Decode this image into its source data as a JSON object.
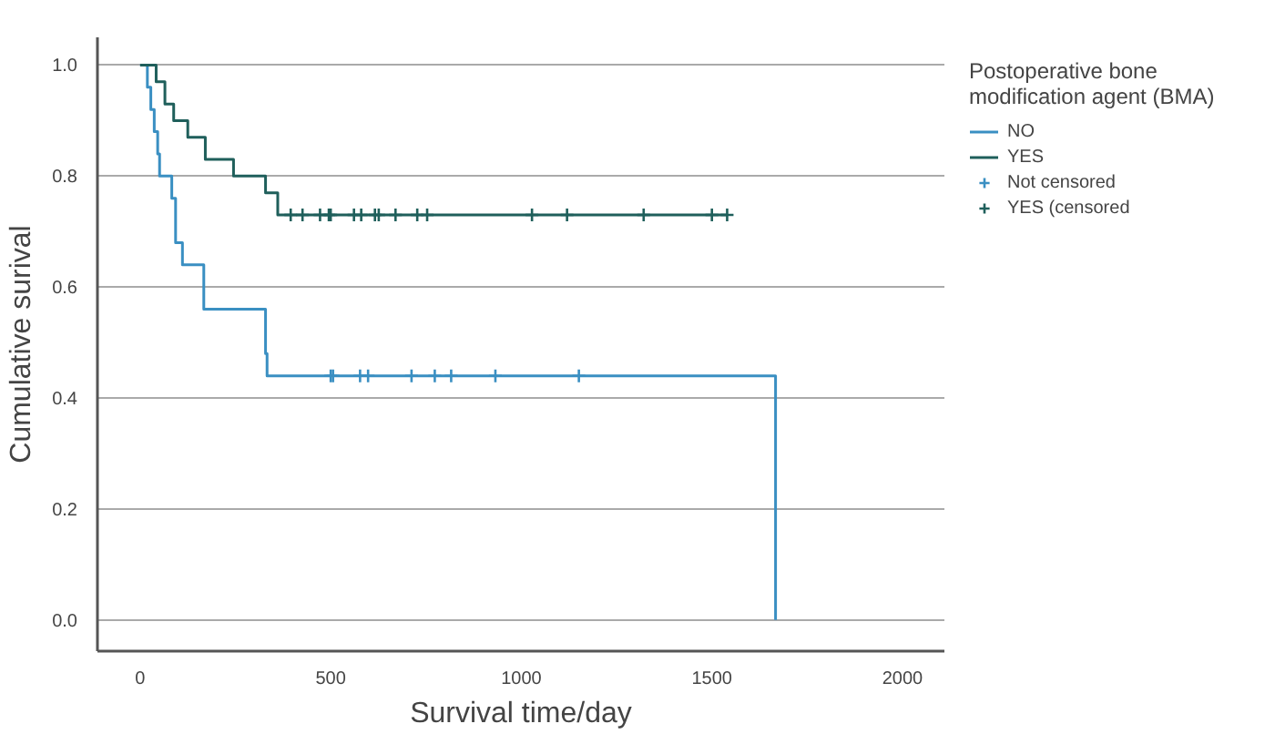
{
  "chart_data": {
    "type": "step",
    "xlabel": "Survival time/day",
    "ylabel": "Cumulative surival",
    "legend_title": "Postoperative bone\nmodification agent (BMA)",
    "xlim": [
      -112,
      2110
    ],
    "ylim": [
      -0.056,
      1.05
    ],
    "xticks": [
      0,
      500,
      1000,
      1500,
      2000
    ],
    "yticks": [
      {
        "value": 0,
        "label": "0.0"
      },
      {
        "value": 0.2,
        "label": "0.2"
      },
      {
        "value": 0.4,
        "label": "0.4"
      },
      {
        "value": 0.6,
        "label": "0.6"
      },
      {
        "value": 0.8,
        "label": "0.8"
      },
      {
        "value": 1,
        "label": "1.0"
      }
    ],
    "grid": "y",
    "legend": "right",
    "series": [
      {
        "name": "NO",
        "color": "#3a8fc2",
        "x": [
          0,
          19,
          28,
          37,
          46,
          51,
          83,
          93,
          111,
          167,
          329,
          333,
          1667
        ],
        "values": [
          1,
          0.96,
          0.92,
          0.88,
          0.84,
          0.8,
          0.76,
          0.68,
          0.64,
          0.56,
          0.48,
          0.44,
          0
        ]
      },
      {
        "name": "YES",
        "color": "#1f5f5b",
        "x": [
          0,
          42,
          65,
          88,
          125,
          171,
          245,
          329,
          361,
          1540
        ],
        "values": [
          1,
          0.97,
          0.93,
          0.9,
          0.87,
          0.83,
          0.8,
          0.77,
          0.73,
          0.73
        ]
      },
      {
        "name": "Not censored",
        "type": "scatter",
        "marker": "cross",
        "color": "#3a8fc2",
        "x": [
          500,
          506,
          577,
          598,
          712,
          773,
          816,
          932,
          1151
        ],
        "values": [
          0.44,
          0.44,
          0.44,
          0.44,
          0.44,
          0.44,
          0.44,
          0.44,
          0.44
        ]
      },
      {
        "name": "YES (censored",
        "type": "scatter",
        "marker": "cross",
        "color": "#1f5f5b",
        "x": [
          395,
          426,
          472,
          495,
          500,
          561,
          580,
          616,
          626,
          670,
          727,
          753,
          1028,
          1120,
          1321,
          1500,
          1540
        ],
        "values": [
          0.73,
          0.73,
          0.73,
          0.73,
          0.73,
          0.73,
          0.73,
          0.73,
          0.73,
          0.73,
          0.73,
          0.73,
          0.73,
          0.73,
          0.73,
          0.73,
          0.73
        ]
      }
    ]
  }
}
